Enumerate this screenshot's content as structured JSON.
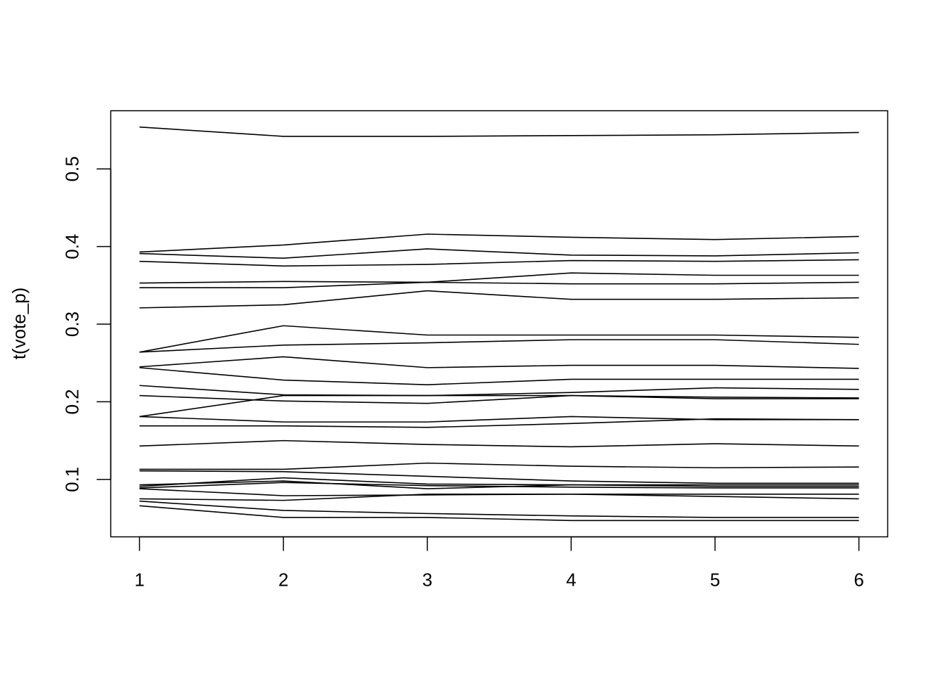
{
  "chart_data": {
    "type": "line",
    "title": "",
    "xlabel": "",
    "ylabel": "t(vote_p)",
    "x": [
      1,
      2,
      3,
      4,
      5,
      6
    ],
    "x_ticks": [
      "1",
      "2",
      "3",
      "4",
      "5",
      "6"
    ],
    "y_ticks": [
      "0.1",
      "0.2",
      "0.3",
      "0.4",
      "0.5"
    ],
    "xlim": [
      0.8,
      6.2
    ],
    "ylim": [
      0.026,
      0.575
    ],
    "grid": false,
    "line_color": "#000000",
    "series": [
      {
        "values": [
          0.554,
          0.542,
          0.542,
          0.543,
          0.544,
          0.547
        ]
      },
      {
        "values": [
          0.393,
          0.402,
          0.416,
          0.412,
          0.409,
          0.413
        ]
      },
      {
        "values": [
          0.391,
          0.385,
          0.397,
          0.389,
          0.388,
          0.392
        ]
      },
      {
        "values": [
          0.381,
          0.375,
          0.377,
          0.382,
          0.381,
          0.383
        ]
      },
      {
        "values": [
          0.353,
          0.355,
          0.354,
          0.366,
          0.363,
          0.363
        ]
      },
      {
        "values": [
          0.347,
          0.347,
          0.354,
          0.352,
          0.352,
          0.354
        ]
      },
      {
        "values": [
          0.321,
          0.325,
          0.343,
          0.332,
          0.332,
          0.334
        ]
      },
      {
        "values": [
          0.264,
          0.298,
          0.286,
          0.286,
          0.286,
          0.283
        ]
      },
      {
        "values": [
          0.264,
          0.273,
          0.276,
          0.28,
          0.28,
          0.274
        ]
      },
      {
        "values": [
          0.245,
          0.258,
          0.244,
          0.247,
          0.247,
          0.243
        ]
      },
      {
        "values": [
          0.244,
          0.228,
          0.222,
          0.229,
          0.229,
          0.229
        ]
      },
      {
        "values": [
          0.221,
          0.209,
          0.208,
          0.212,
          0.218,
          0.216
        ]
      },
      {
        "values": [
          0.208,
          0.201,
          0.198,
          0.208,
          0.204,
          0.204
        ]
      },
      {
        "values": [
          0.181,
          0.208,
          0.208,
          0.208,
          0.206,
          0.205
        ]
      },
      {
        "values": [
          0.181,
          0.174,
          0.174,
          0.181,
          0.177,
          0.177
        ]
      },
      {
        "values": [
          0.169,
          0.169,
          0.167,
          0.172,
          0.178,
          0.177
        ]
      },
      {
        "values": [
          0.143,
          0.15,
          0.145,
          0.142,
          0.146,
          0.143
        ]
      },
      {
        "values": [
          0.113,
          0.113,
          0.121,
          0.117,
          0.115,
          0.116
        ]
      },
      {
        "values": [
          0.111,
          0.11,
          0.104,
          0.098,
          0.095,
          0.095
        ]
      },
      {
        "values": [
          0.091,
          0.102,
          0.094,
          0.093,
          0.091,
          0.091
        ]
      },
      {
        "values": [
          0.089,
          0.096,
          0.092,
          0.09,
          0.089,
          0.089
        ]
      },
      {
        "values": [
          0.088,
          0.079,
          0.08,
          0.081,
          0.081,
          0.081
        ]
      },
      {
        "values": [
          0.093,
          0.098,
          0.088,
          0.093,
          0.093,
          0.093
        ]
      },
      {
        "values": [
          0.075,
          0.073,
          0.081,
          0.081,
          0.078,
          0.075
        ]
      },
      {
        "values": [
          0.072,
          0.06,
          0.056,
          0.053,
          0.051,
          0.051
        ]
      },
      {
        "values": [
          0.066,
          0.051,
          0.051,
          0.047,
          0.047,
          0.047
        ]
      }
    ]
  }
}
